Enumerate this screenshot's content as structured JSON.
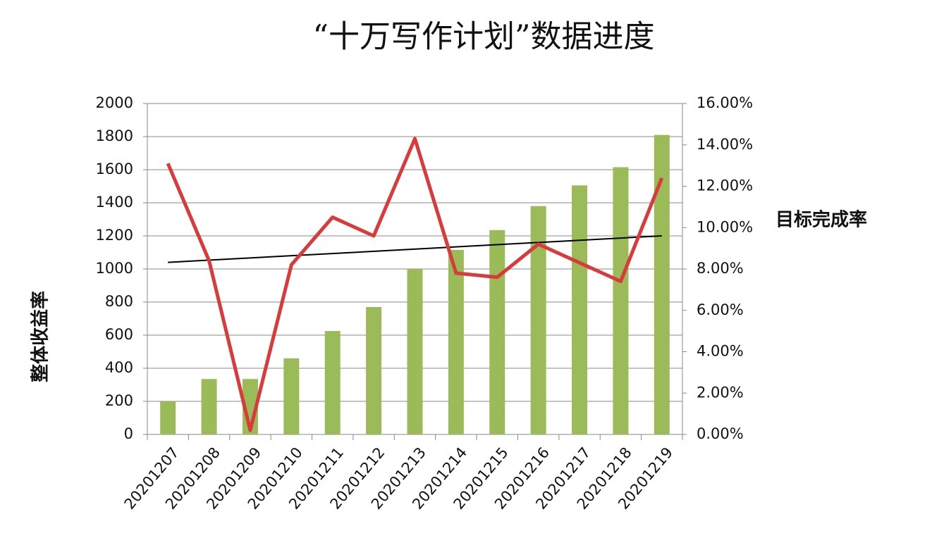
{
  "chart_data": {
    "type": "bar_line",
    "title": "“十万写作计划”数据进度",
    "y_label": "整体收益率",
    "y2_label": "目标完成率",
    "categories": [
      "20201207",
      "20201208",
      "20201209",
      "20201210",
      "20201211",
      "20201212",
      "20201213",
      "20201214",
      "20201215",
      "20201216",
      "20201217",
      "20201218",
      "20201219"
    ],
    "series": [
      {
        "type": "bar",
        "color": "#9bbb59",
        "values": [
          200,
          335,
          335,
          460,
          625,
          770,
          1000,
          1115,
          1235,
          1380,
          1505,
          1615,
          1810
        ]
      },
      {
        "type": "line",
        "axis": "y2",
        "color": "#d93a3a",
        "values": [
          13.1,
          8.4,
          0.2,
          8.2,
          10.5,
          9.6,
          14.3,
          7.8,
          7.6,
          9.2,
          8.3,
          7.4,
          12.4
        ]
      }
    ],
    "trendline": {
      "color": "#000000",
      "values": [
        1040,
        1200
      ]
    },
    "ylim": [
      0,
      2000
    ],
    "yticks": [
      0,
      200,
      400,
      600,
      800,
      1000,
      1200,
      1400,
      1600,
      1800,
      2000
    ],
    "y2lim": [
      0,
      16
    ],
    "y2ticks": [
      {
        "value": 0,
        "label": "0.00%"
      },
      {
        "value": 2,
        "label": "2.00%"
      },
      {
        "value": 4,
        "label": "4.00%"
      },
      {
        "value": 6,
        "label": "6.00%"
      },
      {
        "value": 8,
        "label": "8.00%"
      },
      {
        "value": 10,
        "label": "10.00%"
      },
      {
        "value": 12,
        "label": "12.00%"
      },
      {
        "value": 14,
        "label": "14.00%"
      },
      {
        "value": 16,
        "label": "16.00%"
      }
    ],
    "grid": true
  }
}
